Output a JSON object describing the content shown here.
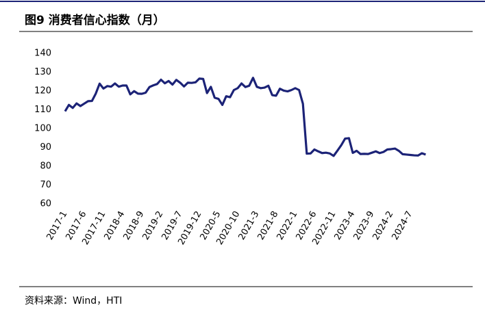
{
  "chart_data": {
    "type": "line",
    "title": "图9  消费者信心指数（月）",
    "source": "资料来源：Wind，HTI",
    "categories": [
      "2017-1",
      null,
      null,
      null,
      null,
      "2017-6",
      null,
      null,
      null,
      null,
      "2017-11",
      null,
      null,
      null,
      null,
      "2018-4",
      null,
      null,
      null,
      null,
      "2018-9",
      null,
      null,
      null,
      null,
      "2019-2",
      null,
      null,
      null,
      null,
      "2019-7",
      null,
      null,
      null,
      null,
      "2019-12",
      null,
      null,
      null,
      null,
      "2020-5",
      null,
      null,
      null,
      null,
      "2020-10",
      null,
      null,
      null,
      null,
      "2021-3",
      null,
      null,
      null,
      null,
      "2021-8",
      null,
      null,
      null,
      null,
      "2022-1",
      null,
      null,
      null,
      null,
      "2022-6",
      null,
      null,
      null,
      null,
      "2022-11",
      null,
      null,
      null,
      null,
      "2023-4",
      null,
      null,
      null,
      null,
      "2023-9",
      null,
      null,
      null,
      null,
      "2024-2",
      null,
      null,
      null,
      null,
      "2024-7",
      null,
      null,
      null,
      null
    ],
    "series": [
      {
        "name": "消费者信心指数",
        "color": "#1c2377",
        "values": [
          109.2,
          112.6,
          111.0,
          113.4,
          112.0,
          113.3,
          114.6,
          114.7,
          118.6,
          123.9,
          121.3,
          122.6,
          122.3,
          124.0,
          122.3,
          122.9,
          122.9,
          118.2,
          119.9,
          118.6,
          118.5,
          119.1,
          122.1,
          123.0,
          123.7,
          126.0,
          124.1,
          125.3,
          123.4,
          125.9,
          124.4,
          122.4,
          124.4,
          124.3,
          124.6,
          126.6,
          126.4,
          118.9,
          122.2,
          116.4,
          115.8,
          112.6,
          117.2,
          116.7,
          120.5,
          121.5,
          124.0,
          122.1,
          122.8,
          127.0,
          122.2,
          121.5,
          121.8,
          122.8,
          117.8,
          117.5,
          121.2,
          120.2,
          119.8,
          120.5,
          121.5,
          120.5,
          113.2,
          86.7,
          86.8,
          88.9,
          87.9,
          87.0,
          87.2,
          86.8,
          85.5,
          88.3,
          91.2,
          94.7,
          94.9,
          87.1,
          88.2,
          86.5,
          86.6,
          86.5,
          87.2,
          87.9,
          87.0,
          87.6,
          88.9,
          89.1,
          89.4,
          88.2,
          86.4,
          86.2,
          86.0,
          85.8,
          85.7,
          86.9,
          86.2
        ]
      }
    ],
    "ylim": [
      60,
      140
    ],
    "yticks": [
      60,
      70,
      80,
      90,
      100,
      110,
      120,
      130,
      140
    ]
  }
}
